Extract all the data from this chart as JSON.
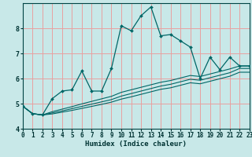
{
  "title": "",
  "xlabel": "Humidex (Indice chaleur)",
  "background_color": "#c8e8e8",
  "grid_color": "#e8a0a0",
  "line_color": "#006666",
  "x_values": [
    0,
    1,
    2,
    3,
    4,
    5,
    6,
    7,
    8,
    9,
    10,
    11,
    12,
    13,
    14,
    15,
    16,
    17,
    18,
    19,
    20,
    21,
    22,
    23
  ],
  "main_line": [
    4.9,
    4.6,
    4.55,
    5.2,
    5.5,
    5.55,
    6.3,
    5.5,
    5.5,
    6.4,
    8.1,
    7.9,
    8.5,
    8.85,
    7.7,
    7.75,
    7.5,
    7.25,
    6.0,
    6.85,
    6.35,
    6.85,
    6.5,
    6.5
  ],
  "lower_line1": [
    4.9,
    4.6,
    4.55,
    4.68,
    4.78,
    4.88,
    4.99,
    5.09,
    5.19,
    5.29,
    5.45,
    5.55,
    5.65,
    5.75,
    5.85,
    5.92,
    6.02,
    6.12,
    6.08,
    6.18,
    6.28,
    6.38,
    6.5,
    6.5
  ],
  "lower_line2": [
    4.9,
    4.6,
    4.55,
    4.63,
    4.71,
    4.8,
    4.89,
    4.98,
    5.07,
    5.16,
    5.3,
    5.4,
    5.5,
    5.6,
    5.7,
    5.77,
    5.87,
    5.97,
    5.93,
    6.03,
    6.13,
    6.23,
    6.4,
    6.4
  ],
  "lower_line3": [
    4.9,
    4.6,
    4.55,
    4.59,
    4.66,
    4.73,
    4.81,
    4.89,
    4.97,
    5.06,
    5.18,
    5.27,
    5.37,
    5.47,
    5.57,
    5.63,
    5.73,
    5.83,
    5.79,
    5.89,
    5.99,
    6.09,
    6.25,
    6.25
  ],
  "ylim": [
    4.0,
    9.0
  ],
  "xlim": [
    0,
    23
  ],
  "yticks": [
    4,
    5,
    6,
    7,
    8
  ],
  "xticks": [
    0,
    1,
    2,
    3,
    4,
    5,
    6,
    7,
    8,
    9,
    10,
    11,
    12,
    13,
    14,
    15,
    16,
    17,
    18,
    19,
    20,
    21,
    22,
    23
  ],
  "tick_fontsize": 5.5,
  "xlabel_fontsize": 6.5
}
